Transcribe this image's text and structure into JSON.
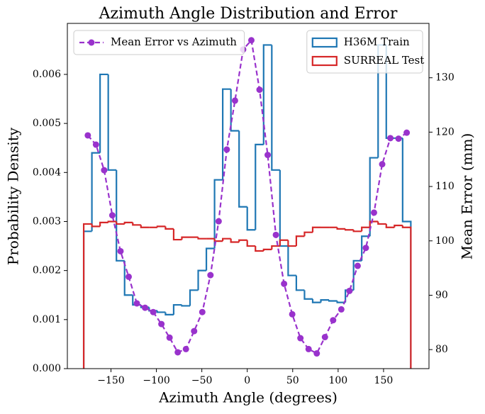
{
  "chart_data": {
    "type": "histogram",
    "title": "Azimuth Angle Distribution and Error",
    "xlabel": "Azimuth Angle (degrees)",
    "ylabel": "Probability Density",
    "y2label": "Mean Error (mm)",
    "bins": [
      -180,
      -171,
      -162,
      -153,
      -144,
      -135,
      -126,
      -117,
      -108,
      -99,
      -90,
      -81,
      -72,
      -63,
      -54,
      -45,
      -36,
      -27,
      -18,
      -9,
      0,
      9,
      18,
      27,
      36,
      45,
      54,
      63,
      72,
      81,
      90,
      99,
      108,
      117,
      126,
      135,
      144,
      153,
      162,
      171,
      180
    ],
    "series": [
      {
        "name": "H36M Train",
        "color": "#1f77b4",
        "legend": "upper right",
        "values": [
          0.0028,
          0.0044,
          0.006,
          0.00405,
          0.0022,
          0.0015,
          0.0013,
          0.00125,
          0.00118,
          0.00115,
          0.0011,
          0.0013,
          0.00128,
          0.0016,
          0.002,
          0.00245,
          0.00385,
          0.0057,
          0.00485,
          0.0033,
          0.00283,
          0.00457,
          0.0066,
          0.00405,
          0.0025,
          0.0019,
          0.0016,
          0.00142,
          0.00135,
          0.0014,
          0.00138,
          0.00135,
          0.0016,
          0.0022,
          0.0027,
          0.0043,
          0.0066,
          0.0047,
          0.0047,
          0.003
        ]
      },
      {
        "name": "SURREAL Test",
        "color": "#d62728",
        "legend": "upper right",
        "values": [
          0.00295,
          0.0029,
          0.00298,
          0.003,
          0.00295,
          0.00298,
          0.00293,
          0.00288,
          0.00288,
          0.0029,
          0.00285,
          0.00263,
          0.00268,
          0.00268,
          0.00265,
          0.00265,
          0.0026,
          0.00265,
          0.00258,
          0.00262,
          0.0025,
          0.0024,
          0.00243,
          0.0025,
          0.00262,
          0.0025,
          0.0027,
          0.00278,
          0.00288,
          0.00288,
          0.00288,
          0.00285,
          0.00283,
          0.0028,
          0.00288,
          0.003,
          0.00295,
          0.00288,
          0.00292,
          0.00288
        ]
      },
      {
        "name": "Mean Error vs Azimuth",
        "color": "#9932cc",
        "axis": "y2",
        "legend": "upper left",
        "dashed": true,
        "x": [
          -175.5,
          -166.5,
          -157.5,
          -148.5,
          -139.5,
          -130.5,
          -121.5,
          -112.5,
          -103.5,
          -94.5,
          -85.5,
          -76.5,
          -67.5,
          -58.5,
          -49.5,
          -40.5,
          -31.5,
          -22.5,
          -13.5,
          -4.5,
          4.5,
          13.5,
          22.5,
          31.5,
          40.5,
          49.5,
          58.5,
          67.5,
          76.5,
          85.5,
          94.5,
          103.5,
          112.5,
          121.5,
          130.5,
          139.5,
          148.5,
          157.5,
          166.5,
          175.5
        ],
        "values": [
          119.4,
          117.7,
          113.0,
          104.7,
          98.1,
          93.4,
          88.5,
          87.7,
          86.9,
          84.7,
          82.2,
          79.5,
          80.1,
          83.4,
          86.9,
          93.7,
          103.6,
          116.8,
          125.8,
          135.2,
          136.9,
          127.8,
          115.8,
          101.1,
          92.1,
          86.5,
          82.1,
          80.1,
          79.3,
          82.3,
          85.4,
          87.4,
          90.8,
          95.4,
          98.7,
          105.2,
          114.1,
          118.9,
          118.8,
          119.9
        ]
      }
    ],
    "xlim": [
      -198,
      200
    ],
    "xticks": [
      {
        "value": -150,
        "label": "−150"
      },
      {
        "value": -100,
        "label": "−100"
      },
      {
        "value": -50,
        "label": "−50"
      },
      0,
      50,
      100,
      150
    ],
    "ylim": [
      0,
      0.00704
    ],
    "yticks": [
      {
        "value": 0,
        "label": "0.000"
      },
      0.001,
      0.002,
      0.003,
      0.004,
      0.005,
      0.006
    ],
    "y2lim": [
      76.5,
      140
    ],
    "y2ticks": [
      80,
      90,
      100,
      110,
      120,
      130
    ]
  }
}
